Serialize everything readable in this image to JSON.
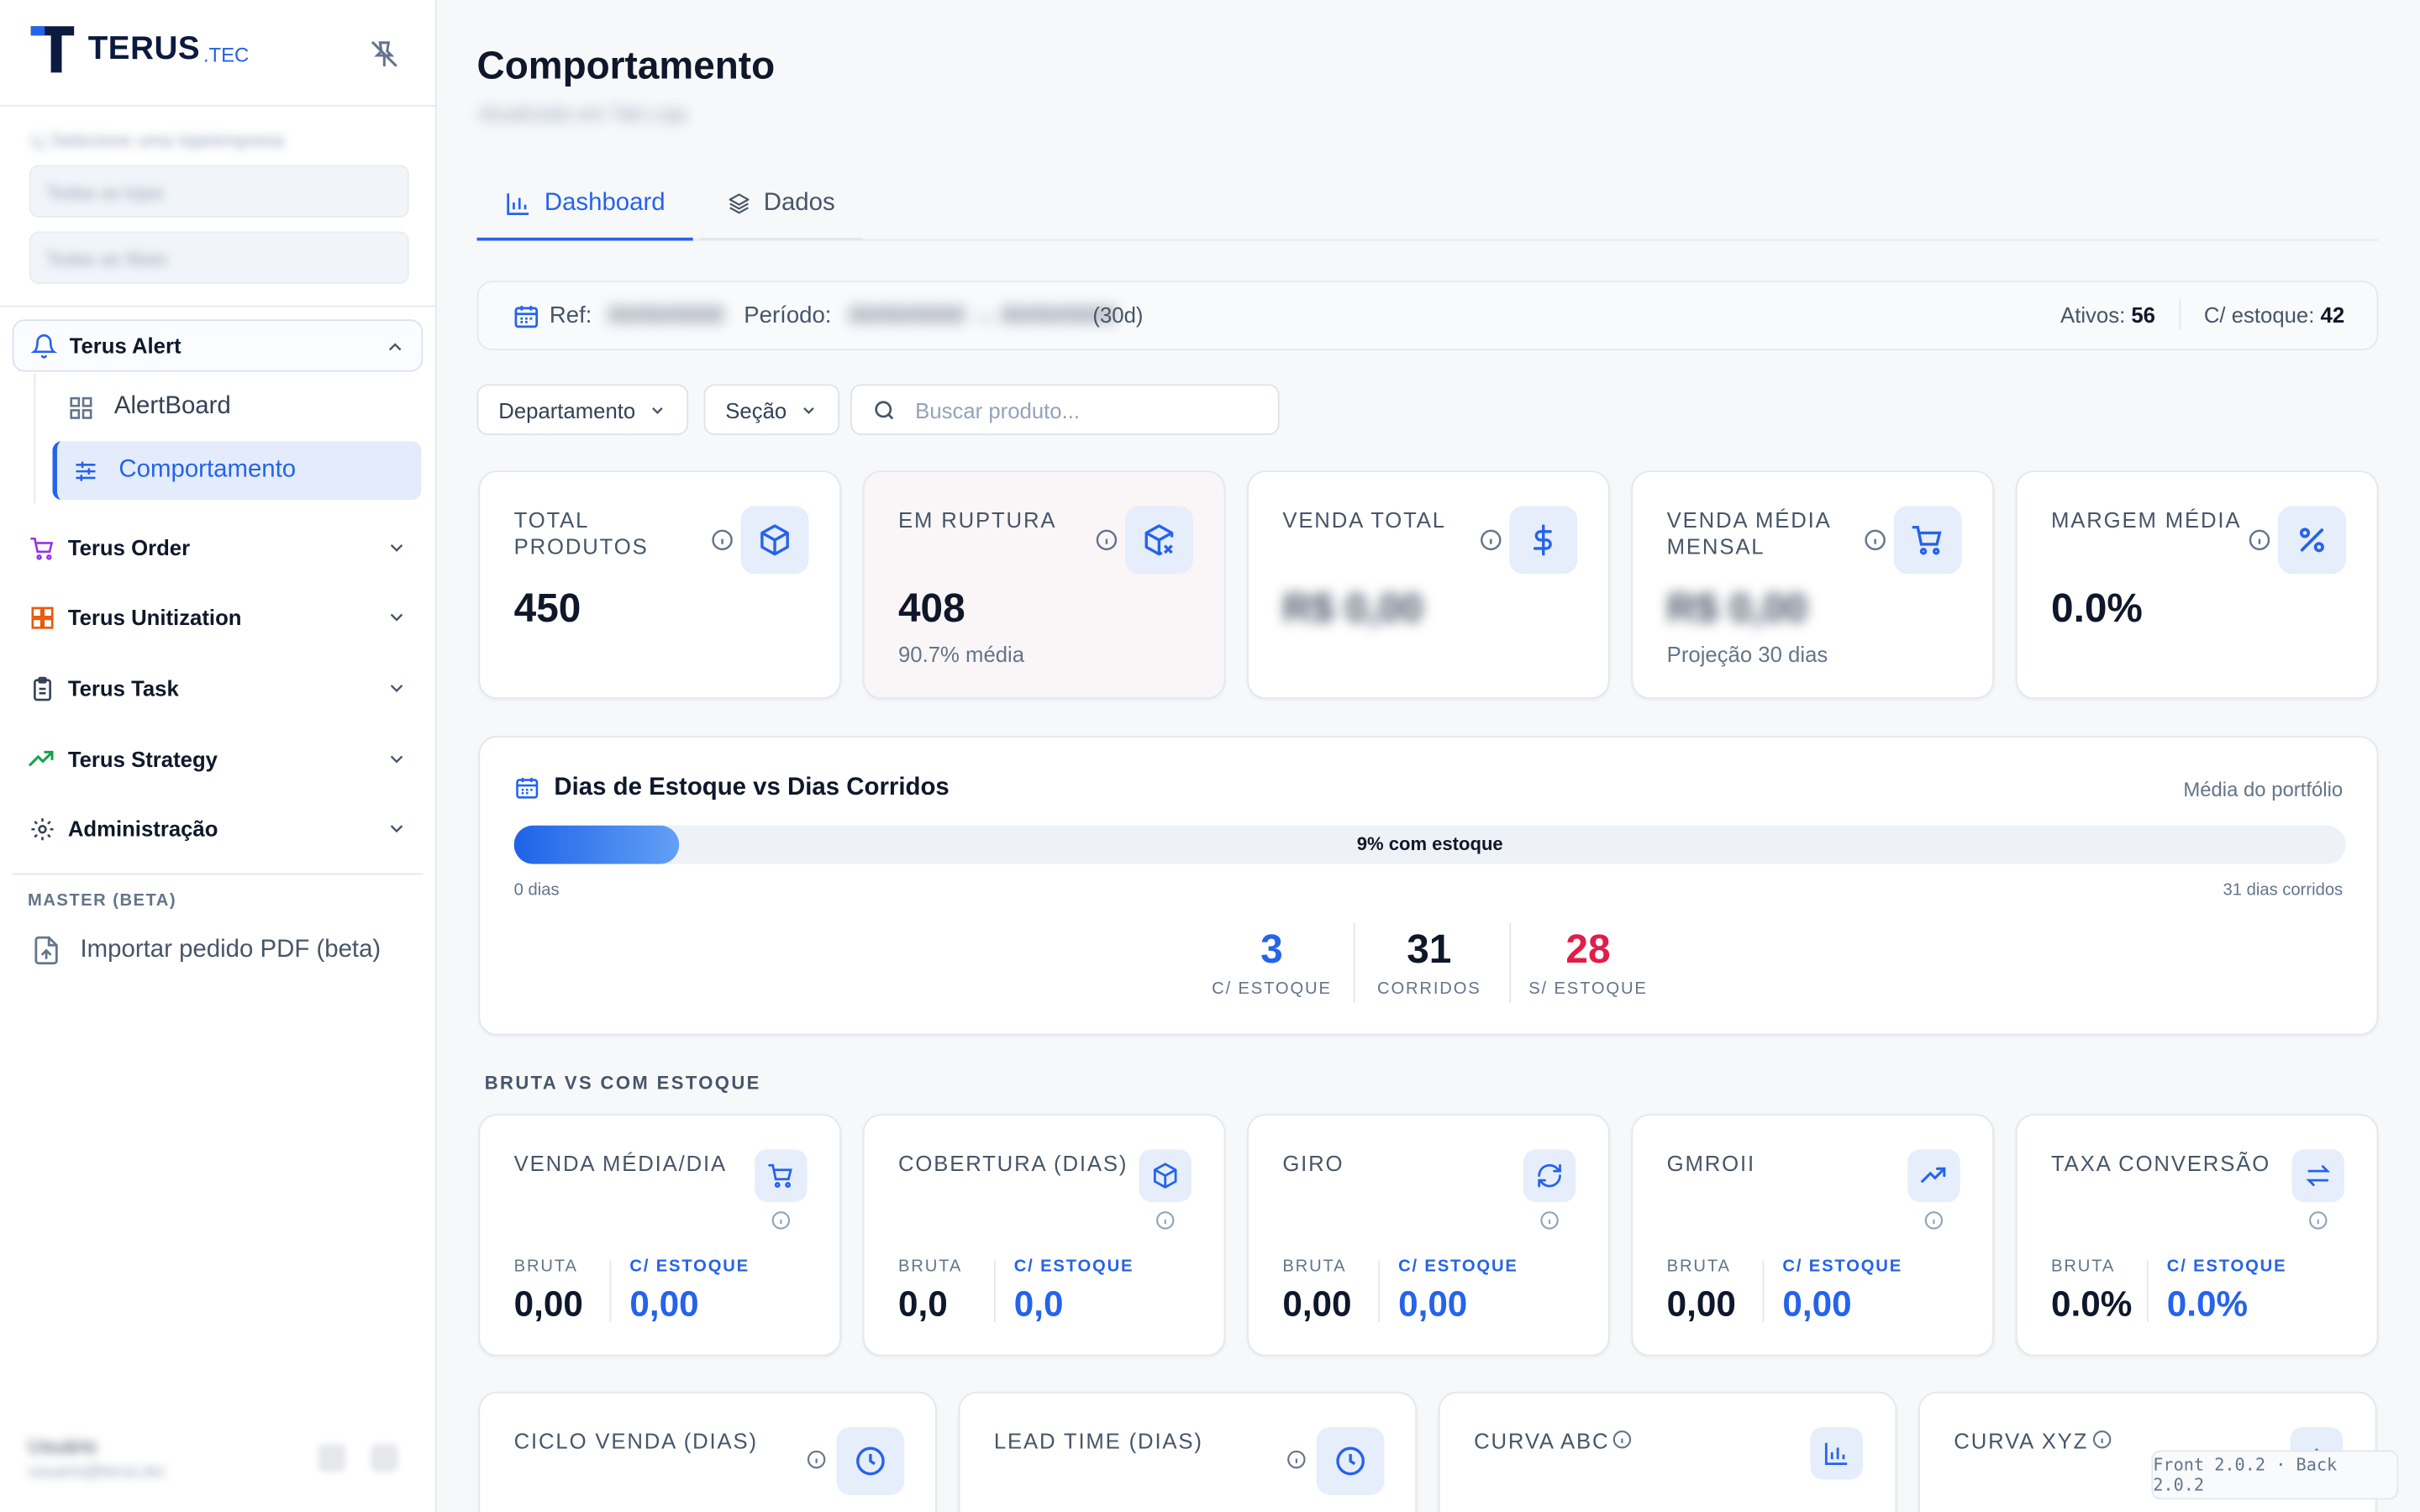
{
  "brand": {
    "name": "TERUS",
    "suffix": ".TEC",
    "accent": "#2563eb",
    "brand_navy": "#0b1a3e"
  },
  "sidebar": {
    "selector_label": "Lj Selecione uma loja/empresa",
    "selector_1": "Todas as lojas",
    "selector_2": "Todas as filiais",
    "groups": [
      {
        "label": "Terus Alert",
        "icon": "bell-icon",
        "color": "#2563eb",
        "expanded": true,
        "items": [
          {
            "label": "AlertBoard",
            "icon": "grid-icon"
          },
          {
            "label": "Comportamento",
            "icon": "sliders-icon",
            "active": true
          }
        ]
      },
      {
        "label": "Terus Order",
        "icon": "cart-icon",
        "color": "#9333ea"
      },
      {
        "label": "Terus Unitization",
        "icon": "boxes-icon",
        "color": "#ea580c"
      },
      {
        "label": "Terus Task",
        "icon": "clipboard-icon",
        "color": "#334155"
      },
      {
        "label": "Terus Strategy",
        "icon": "trending-up-icon",
        "color": "#16a34a"
      },
      {
        "label": "Administração",
        "icon": "gear-icon",
        "color": "#334155"
      }
    ],
    "master_label": "MASTER (BETA)",
    "import_label": "Importar pedido PDF (beta)",
    "user_name": "Usuário",
    "user_role": "usuario@terus.tec"
  },
  "page": {
    "title": "Comportamento",
    "subtitle": "Atualizado em Tab Loja"
  },
  "tabs": [
    {
      "label": "Dashboard",
      "icon": "bar-chart-icon"
    },
    {
      "label": "Dados",
      "icon": "layers-icon"
    }
  ],
  "refbar": {
    "ref_label": "Ref:",
    "ref_value": "00/00/0000",
    "period_label": "Período:",
    "period_value": "00/00/0000 → 00/00/0000",
    "period_days": "(30d)",
    "ativos_label": "Ativos:",
    "ativos_value": "56",
    "estoque_label": "C/ estoque:",
    "estoque_value": "42"
  },
  "filters": {
    "dept": "Departamento",
    "secao": "Seção",
    "search_placeholder": "Buscar produto..."
  },
  "kpis": [
    {
      "label": "TOTAL PRODUTOS",
      "value": "450",
      "sub": "",
      "icon": "box-icon"
    },
    {
      "label": "EM RUPTURA",
      "value": "408",
      "sub": "90.7% média",
      "icon": "box-x-icon"
    },
    {
      "label": "VENDA TOTAL",
      "value": "R$ 0,00",
      "sub": "",
      "icon": "dollar-icon"
    },
    {
      "label": "VENDA MÉDIA MENSAL",
      "value": "R$ 0,00",
      "sub": "Projeção 30 dias",
      "icon": "cart-icon"
    },
    {
      "label": "MARGEM MÉDIA",
      "value": "0.0%",
      "sub": "",
      "icon": "percent-icon"
    }
  ],
  "stock_days": {
    "title": "Dias de Estoque vs Dias Corridos",
    "right_label": "Média do portfólio",
    "progress_pct": 9,
    "bar_label": "9% com estoque",
    "axis_start": "0 dias",
    "axis_end": "31 dias corridos",
    "stats": [
      {
        "value": "3",
        "label": "C/ ESTOQUE",
        "color": "#2563eb"
      },
      {
        "value": "31",
        "label": "CORRIDOS",
        "color": "#0f172a"
      },
      {
        "value": "28",
        "label": "S/ ESTOQUE",
        "color": "#e11d48"
      }
    ]
  },
  "section_label": "BRUTA VS COM ESTOQUE",
  "bruta_label": "BRUTA",
  "estoque_label": "C/ ESTOQUE",
  "metrics": [
    {
      "label": "VENDA MÉDIA/DIA",
      "bruta": "0,00",
      "estoque": "0,00",
      "icon": "cart-icon"
    },
    {
      "label": "COBERTURA (DIAS)",
      "bruta": "0,0",
      "estoque": "0,0",
      "icon": "box-icon"
    },
    {
      "label": "GIRO",
      "bruta": "0,00",
      "estoque": "0,00",
      "icon": "refresh-icon"
    },
    {
      "label": "GMROII",
      "bruta": "0,00",
      "estoque": "0,00",
      "icon": "trending-up-icon"
    },
    {
      "label": "TAXA CONVERSÃO",
      "bruta": "0.0%",
      "estoque": "0.0%",
      "icon": "arrows-icon"
    }
  ],
  "bottom_cards": [
    {
      "label": "CICLO VENDA (DIAS)",
      "icon": "clock-icon"
    },
    {
      "label": "LEAD TIME (DIAS)",
      "icon": "clock-icon"
    },
    {
      "label": "CURVA ABC",
      "icon": "bar-chart-icon"
    },
    {
      "label": "CURVA XYZ",
      "icon": "chevron-up-icon"
    }
  ],
  "version": "Front 2.0.2 · Back 2.0.2"
}
